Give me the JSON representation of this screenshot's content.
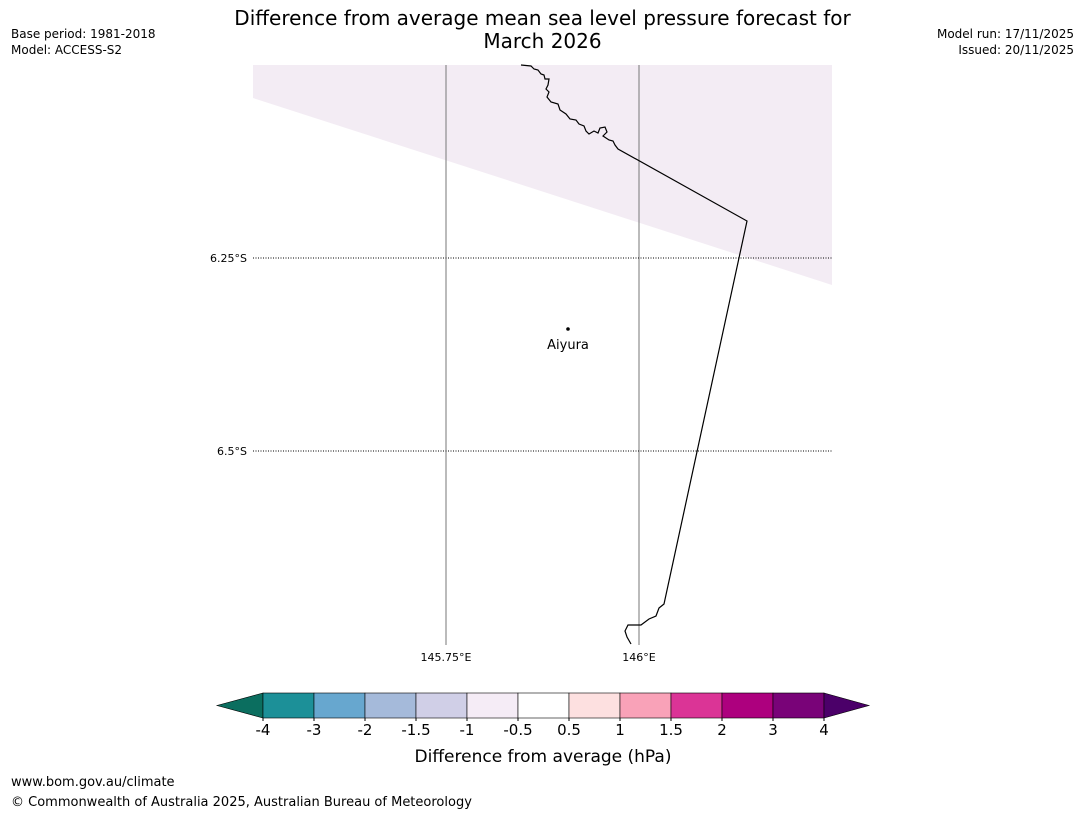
{
  "header": {
    "title_line1": "Difference from average mean sea level pressure forecast for",
    "title_line2": "March 2026",
    "base_period": "Base period: 1981-2018",
    "model": "Model: ACCESS-S2",
    "model_run": "Model run: 17/11/2025",
    "issued": "Issued: 20/11/2025"
  },
  "map": {
    "lat_labels": [
      "6.25°S",
      "6.5°S"
    ],
    "lon_labels": [
      "145.75°E",
      "146°E"
    ],
    "place": {
      "name": "Aiyura",
      "lat": -6.34,
      "lon": 145.9
    },
    "shaded_bin_color": "#f3ecf4"
  },
  "colorbar": {
    "label": "Difference from average (hPa)",
    "ticks": [
      "-4",
      "-3",
      "-2",
      "-1.5",
      "-1",
      "-0.5",
      "0.5",
      "1",
      "1.5",
      "2",
      "3",
      "4"
    ],
    "under_color": "#0b6e5f",
    "over_color": "#4b0069",
    "bin_colors": [
      "#1c9098",
      "#67a7cf",
      "#a5bada",
      "#d0cfe7",
      "#f5ecf6",
      "#ffffff",
      "#fde0e0",
      "#f9a2b8",
      "#db3496",
      "#ad007e",
      "#790378"
    ]
  },
  "footer": {
    "url": "www.bom.gov.au/climate",
    "copyright": "© Commonwealth of Australia 2025, Australian Bureau of Meteorology"
  }
}
